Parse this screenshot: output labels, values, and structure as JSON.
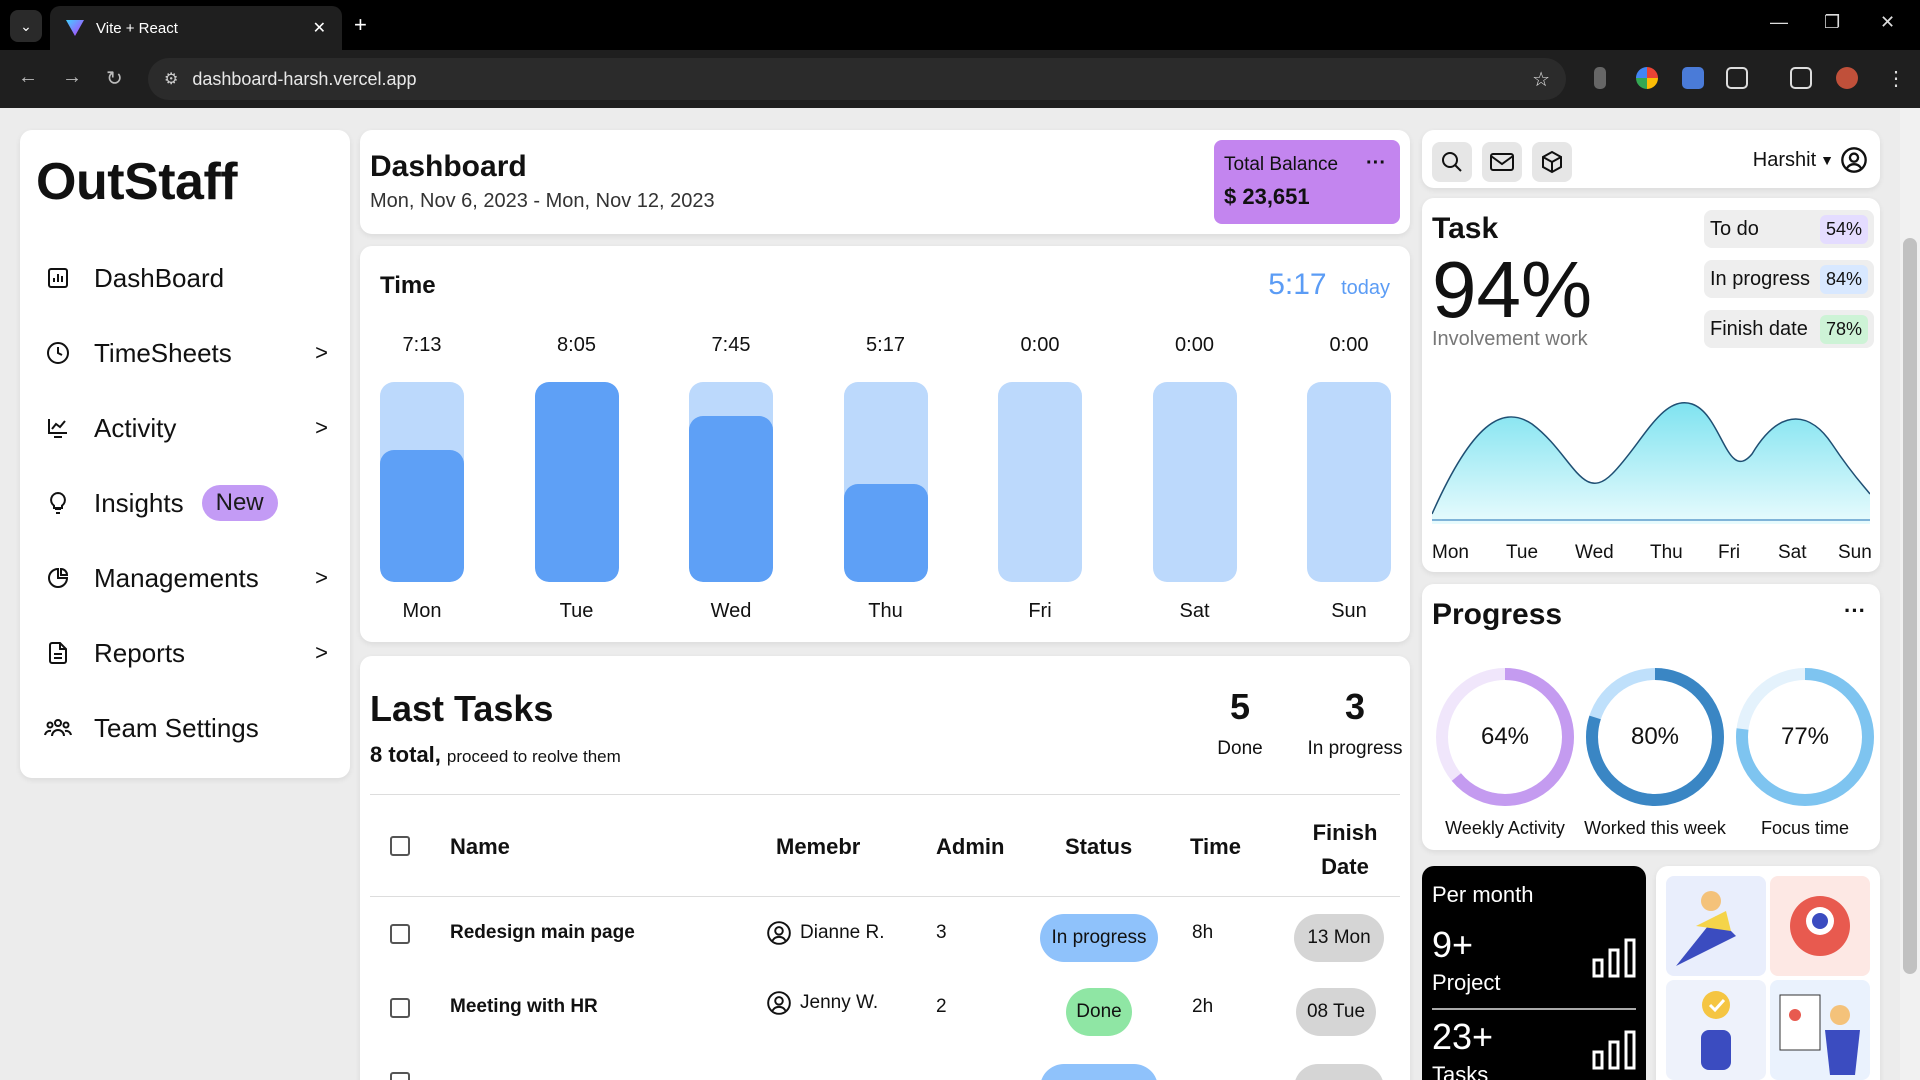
{
  "browser": {
    "tab_title": "Vite + React",
    "url": "dashboard-harsh.vercel.app"
  },
  "sidebar": {
    "logo": "OutStaff",
    "items": [
      {
        "label": "DashBoard",
        "icon": "chart-bar-icon",
        "chevron": ""
      },
      {
        "label": "TimeSheets",
        "icon": "clock-icon",
        "chevron": ">"
      },
      {
        "label": "Activity",
        "icon": "activity-chart-icon",
        "chevron": ">"
      },
      {
        "label": "Insights",
        "icon": "lightbulb-icon",
        "chevron": "",
        "badge": "New"
      },
      {
        "label": "Managements",
        "icon": "pie-chart-icon",
        "chevron": ">"
      },
      {
        "label": "Reports",
        "icon": "document-icon",
        "chevron": ">"
      },
      {
        "label": "Team Settings",
        "icon": "team-icon",
        "chevron": ""
      }
    ]
  },
  "header": {
    "title": "Dashboard",
    "date_range": "Mon, Nov 6, 2023 - Mon, Nov 12, 2023",
    "balance_label": "Total Balance",
    "balance_value": "$ 23,651",
    "more": "···"
  },
  "time": {
    "title": "Time",
    "today_value": "5:17",
    "today_label": "today",
    "colors": {
      "track": "#bcd9fc",
      "fill": "#5ea0f6"
    },
    "days": [
      {
        "label": "Mon",
        "value": "7:13",
        "fill": 0.66
      },
      {
        "label": "Tue",
        "value": "8:05",
        "fill": 1.0
      },
      {
        "label": "Wed",
        "value": "7:45",
        "fill": 0.83
      },
      {
        "label": "Thu",
        "value": "5:17",
        "fill": 0.49
      },
      {
        "label": "Fri",
        "value": "0:00",
        "fill": 0
      },
      {
        "label": "Sat",
        "value": "0:00",
        "fill": 0
      },
      {
        "label": "Sun",
        "value": "0:00",
        "fill": 0
      }
    ]
  },
  "tasks": {
    "title": "Last Tasks",
    "total": "8 total,",
    "total_sub": "proceed to reolve them",
    "done_count": "5",
    "done_label": "Done",
    "progress_count": "3",
    "progress_label": "In progress",
    "columns": [
      "Name",
      "Memebr",
      "Admin",
      "Status",
      "Time",
      "Finish Date"
    ],
    "rows": [
      {
        "name": "Redesign main page",
        "member": "Dianne R.",
        "admin": "3",
        "status": "In progress",
        "time": "8h",
        "finish": "13 Mon"
      },
      {
        "name": "Meeting with HR",
        "member": "Jenny W.",
        "admin": "2",
        "status": "Done",
        "time": "2h",
        "finish": "08 Tue"
      }
    ]
  },
  "topbar": {
    "user": "Harshit"
  },
  "task_card": {
    "title": "Task",
    "percent": "94%",
    "subtitle": "Involvement work",
    "chips": [
      {
        "label": "To do",
        "value": "54%",
        "color": "#e4dcff"
      },
      {
        "label": "In progress",
        "value": "84%",
        "color": "#d8e8ff"
      },
      {
        "label": "Finish date",
        "value": "78%",
        "color": "#cdf3d6"
      }
    ],
    "weekdays": [
      "Mon",
      "Tue",
      "Wed",
      "Thu",
      "Fri",
      "Sat",
      "Sun"
    ]
  },
  "progress": {
    "title": "Progress",
    "more": "···",
    "rings": [
      {
        "value": "64%",
        "label": "Weekly Activity",
        "fraction": 0.64,
        "color": "#c49bf0",
        "track": "#f0e6fb"
      },
      {
        "value": "80%",
        "label": "Worked this week",
        "fraction": 0.8,
        "color": "#3a86c4",
        "track": "#bfe0fb"
      },
      {
        "value": "77%",
        "label": "Focus time",
        "fraction": 0.77,
        "color": "#7ec4f0",
        "track": "#e4f2fc"
      }
    ]
  },
  "per_month": {
    "title": "Per month",
    "project_count": "9+",
    "project_label": "Project",
    "task_count": "23+",
    "task_label": "Tasks"
  }
}
